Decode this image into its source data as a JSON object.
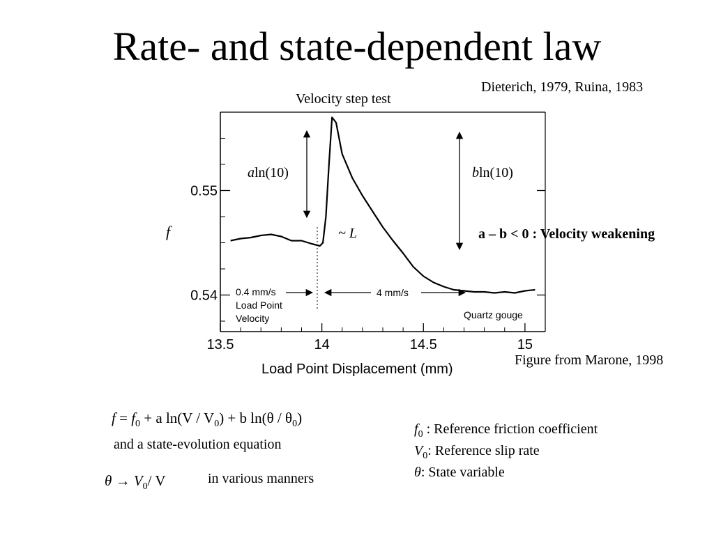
{
  "slide": {
    "title": "Rate- and state-dependent law",
    "citation": "Dieterich, 1979, Ruina, 1983",
    "credit": "Figure from Marone, 1998"
  },
  "chart_data": {
    "type": "line",
    "title": "Velocity step test",
    "xlabel": "Load Point Displacement  (mm)",
    "ylabel": "f",
    "xlim": [
      13.5,
      15.1
    ],
    "ylim": [
      0.5365,
      0.5575
    ],
    "x_ticks": [
      "13.5",
      "14",
      "14.5",
      "15"
    ],
    "y_ticks": [
      "0.55",
      "0.54"
    ],
    "y_tick_values": [
      0.55,
      0.54
    ],
    "series": [
      {
        "x": [
          13.55,
          13.6,
          13.65,
          13.7,
          13.75,
          13.8,
          13.85,
          13.9,
          13.95,
          13.99,
          14.005,
          14.02,
          14.035,
          14.05,
          14.07,
          14.1,
          14.15,
          14.2,
          14.25,
          14.3,
          14.35,
          14.4,
          14.45,
          14.5,
          14.55,
          14.6,
          14.65,
          14.7,
          14.75,
          14.8,
          14.85,
          14.9,
          14.95,
          15.0,
          15.05
        ],
        "y": [
          0.5452,
          0.5454,
          0.5455,
          0.5457,
          0.5458,
          0.5456,
          0.5452,
          0.5452,
          0.5449,
          0.5447,
          0.545,
          0.5475,
          0.5525,
          0.557,
          0.5565,
          0.5535,
          0.5512,
          0.5495,
          0.548,
          0.5465,
          0.5452,
          0.544,
          0.5427,
          0.5418,
          0.5412,
          0.5408,
          0.5405,
          0.5404,
          0.5403,
          0.5403,
          0.5402,
          0.5403,
          0.5402,
          0.5404,
          0.5405
        ]
      }
    ],
    "annotations": {
      "a_label_var": "a",
      "a_label_rest": "ln(10)",
      "b_label_var": "b",
      "b_label_rest": "ln(10)",
      "l_label": "~ L",
      "weakening": "a – b < 0 : Velocity weakening",
      "v1": "0.4 mm/s",
      "v1_sub1": "Load Point",
      "v1_sub2": "Velocity",
      "v2": "4 mm/s",
      "material": "Quartz gouge"
    }
  },
  "equations": {
    "main_f": "f",
    "main_eq": "=",
    "main_f0": "f",
    "main_f0_sub": "0",
    "main_rest": "+ a ln(V / V",
    "main_rest_sub": "0",
    "main_rest2": ") + b ln(θ / θ",
    "main_rest2_sub": "0",
    "main_close": ")",
    "evolution_text": "and a state-evolution equation",
    "theta_lhs": "θ → V",
    "theta_sub": "0",
    "theta_rhs": "/ V",
    "manners": "in various manners"
  },
  "definitions": [
    {
      "sym": "f",
      "sub": "0",
      "text": " : Reference friction coefficient"
    },
    {
      "sym": "V",
      "sub": "0",
      "text": ": Reference slip rate"
    },
    {
      "sym": "θ",
      "sub": "",
      "text": ": State variable"
    }
  ]
}
